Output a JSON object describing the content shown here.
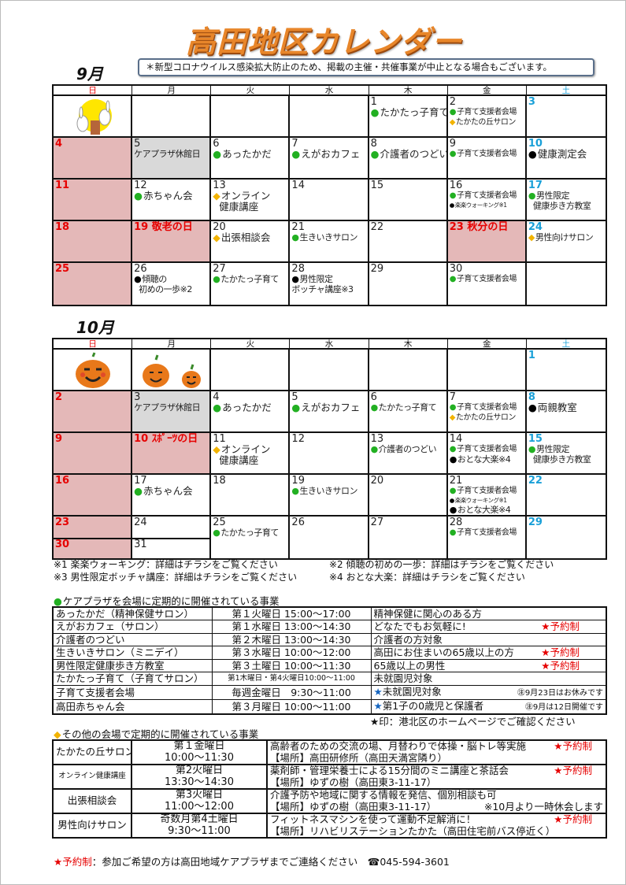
{
  "title": "高田地区カレンダー",
  "notice": "＊新型コロナウイルス感染拡大防止のため、掲載の主催・共催事業が中止となる場合もございます。",
  "weekdays": [
    "日",
    "月",
    "火",
    "水",
    "木",
    "金",
    "土"
  ],
  "colors": {
    "green": "#22b022",
    "orange": "#f2b300",
    "sunday": "#e60000",
    "saturday": "#1aa0d8",
    "holiday_bg": "#e4b8b8",
    "closed_bg": "#d9d9d9"
  },
  "september": {
    "label": "9月",
    "weeks": [
      [
        {
          "img": "moon-rabbits"
        },
        {},
        {},
        {},
        {
          "d": "1",
          "ev": [
            {
              "m": "g",
              "t": "たかたっ子育て"
            }
          ]
        },
        {
          "d": "2",
          "ev": [
            {
              "m": "g",
              "t": "子育て支援者会場",
              "z": "s"
            },
            {
              "m": "o",
              "t": "たかたの丘サロン",
              "z": "s"
            }
          ]
        },
        {
          "d": "3",
          "k": "sat"
        }
      ],
      [
        {
          "d": "4",
          "k": "sun",
          "bg": "pink"
        },
        {
          "d": "5",
          "bg": "gray",
          "ev": [
            {
              "t": "ケアプラザ休館日",
              "z": "note"
            }
          ]
        },
        {
          "d": "6",
          "ev": [
            {
              "m": "g",
              "t": "あったかだ"
            }
          ]
        },
        {
          "d": "7",
          "ev": [
            {
              "m": "g",
              "t": "えがおカフェ"
            }
          ]
        },
        {
          "d": "8",
          "ev": [
            {
              "m": "g",
              "t": "介護者のつどい"
            }
          ]
        },
        {
          "d": "9",
          "ev": [
            {
              "m": "g",
              "t": "子育て支援者会場",
              "z": "s"
            }
          ]
        },
        {
          "d": "10",
          "k": "sat",
          "ev": [
            {
              "m": "k",
              "t": "健康測定会"
            }
          ]
        }
      ],
      [
        {
          "d": "11",
          "k": "sun",
          "bg": "pink"
        },
        {
          "d": "12",
          "ev": [
            {
              "m": "g",
              "t": "赤ちゃん会"
            }
          ]
        },
        {
          "d": "13",
          "ev": [
            {
              "m": "o",
              "t": "オンライン\n  健康講座"
            }
          ]
        },
        {
          "d": "14"
        },
        {
          "d": "15"
        },
        {
          "d": "16",
          "ev": [
            {
              "m": "g",
              "t": "子育て支援者会場",
              "z": "s"
            },
            {
              "m": "k",
              "t": "楽楽ウォーキング※1",
              "z": "xs"
            }
          ]
        },
        {
          "d": "17",
          "k": "sat",
          "ev": [
            {
              "m": "g",
              "t": "男性限定\n  健康歩き方教室",
              "z": "note"
            }
          ]
        }
      ],
      [
        {
          "d": "18",
          "k": "sun",
          "bg": "pink"
        },
        {
          "d": "19 敬老の日",
          "k": "hol",
          "bg": "pink"
        },
        {
          "d": "20",
          "ev": [
            {
              "m": "o",
              "t": "出張相談会"
            }
          ]
        },
        {
          "d": "21",
          "ev": [
            {
              "m": "g",
              "t": "生きいきサロン",
              "z": "note"
            }
          ]
        },
        {
          "d": "22"
        },
        {
          "d": "23 秋分の日",
          "k": "hol",
          "bg": "pink"
        },
        {
          "d": "24",
          "k": "sat",
          "ev": [
            {
              "m": "o",
              "t": "男性向けサロン",
              "z": "note"
            }
          ]
        }
      ],
      [
        {
          "d": "25",
          "k": "sun",
          "bg": "pink"
        },
        {
          "d": "26",
          "ev": [
            {
              "m": "k",
              "t": "傾聴の\n  初めの一歩※2",
              "z": "note"
            }
          ]
        },
        {
          "d": "27",
          "ev": [
            {
              "m": "g",
              "t": "たかたっ子育て",
              "z": "note"
            }
          ]
        },
        {
          "d": "28",
          "ev": [
            {
              "m": "k",
              "t": "男性限定\nボッチャ講座※3",
              "z": "note"
            }
          ]
        },
        {
          "d": "29"
        },
        {
          "d": "30",
          "ev": [
            {
              "m": "g",
              "t": "子育て支援者会場",
              "z": "s"
            }
          ]
        },
        {}
      ]
    ]
  },
  "october": {
    "label": "10月",
    "weeks": [
      [
        {
          "img": "pumpkin-large"
        },
        {
          "img": "pumpkins-small"
        },
        {},
        {},
        {},
        {},
        {
          "d": "1",
          "k": "sat"
        }
      ],
      [
        {
          "d": "2",
          "k": "sun",
          "bg": "pink"
        },
        {
          "d": "3",
          "bg": "gray",
          "ev": [
            {
              "t": "ケアプラザ休館日",
              "z": "note"
            }
          ]
        },
        {
          "d": "4",
          "ev": [
            {
              "m": "g",
              "t": "あったかだ"
            }
          ]
        },
        {
          "d": "5",
          "ev": [
            {
              "m": "g",
              "t": "えがおカフェ"
            }
          ]
        },
        {
          "d": "6",
          "ev": [
            {
              "m": "g",
              "t": "たかたっ子育て",
              "z": "note"
            }
          ]
        },
        {
          "d": "7",
          "ev": [
            {
              "m": "g",
              "t": "子育て支援者会場",
              "z": "s"
            },
            {
              "m": "o",
              "t": "たかたの丘サロン",
              "z": "s"
            }
          ]
        },
        {
          "d": "8",
          "k": "sat",
          "ev": [
            {
              "m": "k",
              "t": "両親教室"
            }
          ]
        }
      ],
      [
        {
          "d": "9",
          "k": "sun",
          "bg": "pink"
        },
        {
          "d": "10 ｽﾎﾟｰﾂの日",
          "k": "hol",
          "bg": "pink"
        },
        {
          "d": "11",
          "ev": [
            {
              "m": "o",
              "t": "オンライン\n  健康講座"
            }
          ]
        },
        {
          "d": "12"
        },
        {
          "d": "13",
          "ev": [
            {
              "m": "g",
              "t": "介護者のつどい",
              "z": "note"
            }
          ]
        },
        {
          "d": "14",
          "ev": [
            {
              "m": "g",
              "t": "子育て支援者会場",
              "z": "s"
            },
            {
              "m": "k",
              "t": "おとな大楽※4",
              "z": "note"
            }
          ]
        },
        {
          "d": "15",
          "k": "sat",
          "ev": [
            {
              "m": "g",
              "t": "男性限定\n  健康歩き方教室",
              "z": "note"
            }
          ]
        }
      ],
      [
        {
          "d": "16",
          "k": "sun",
          "bg": "pink"
        },
        {
          "d": "17",
          "ev": [
            {
              "m": "g",
              "t": "赤ちゃん会"
            }
          ]
        },
        {
          "d": "18"
        },
        {
          "d": "19",
          "ev": [
            {
              "m": "g",
              "t": "生きいきサロン",
              "z": "note"
            }
          ]
        },
        {
          "d": "20"
        },
        {
          "d": "21",
          "ev": [
            {
              "m": "g",
              "t": "子育て支援者会場",
              "z": "s"
            },
            {
              "m": "k",
              "t": "楽楽ウォーキング※1",
              "z": "xs"
            },
            {
              "m": "k",
              "t": "おとな大楽※4",
              "z": "note"
            }
          ]
        },
        {
          "d": "22",
          "k": "sat"
        }
      ],
      [
        {
          "d": "23",
          "d2": "30",
          "k": "sun",
          "bg": "pink"
        },
        {
          "d": "24",
          "d2": "31"
        },
        {
          "d": "25",
          "ev": [
            {
              "m": "g",
              "t": "たかたっ子育て",
              "z": "note"
            }
          ]
        },
        {
          "d": "26"
        },
        {
          "d": "27"
        },
        {
          "d": "28",
          "ev": [
            {
              "m": "g",
              "t": "子育て支援者会場",
              "z": "s"
            }
          ]
        },
        {
          "d": "29",
          "k": "sat"
        }
      ]
    ]
  },
  "footnotes": [
    "※1 楽楽ウォーキング：詳細はチラシをご覧ください",
    "※2 傾聴の初めの一歩：詳細はチラシをご覧ください",
    "※3 男性限定ボッチャ講座：詳細はチラシをご覧ください",
    "※4 おとな大楽：詳細はチラシをご覧ください"
  ],
  "careplaza": {
    "heading": "ケアプラザを会場に定期的に開催されている事業",
    "reserve_label": "★予約制",
    "rows": [
      {
        "name": "あったかだ（精神保健サロン）",
        "schedule": "第１火曜日 15:00～17:00",
        "target": "精神保健に関心のある方"
      },
      {
        "name": "えがおカフェ（サロン）",
        "schedule": "第１水曜日 13:00～14:30",
        "target": "どなたでもお気軽に!",
        "reserve": true
      },
      {
        "name": "介護者のつどい",
        "schedule": "第２木曜日 13:00～14:30",
        "target": "介護者の方対象"
      },
      {
        "name": "生きいきサロン（ミニデイ）",
        "schedule": "第３水曜日 10:00～12:00",
        "target": "高田にお住まいの65歳以上の方",
        "reserve": true
      },
      {
        "name": "男性限定健康歩き方教室",
        "schedule": "第３土曜日 10:00～11:30",
        "target": "65歳以上の男性",
        "reserve": true
      },
      {
        "name": "たかたっ子育て（子育てサロン）",
        "schedule": "第1木曜日・第4火曜日10:00～11:00",
        "target": "未就園児対象",
        "small": true
      },
      {
        "name": "子育て支援者会場",
        "schedule": "毎週金曜日　9:30～11:00",
        "target": "未就園児対象",
        "star": true,
        "note": "㊟9月23日はお休みです"
      },
      {
        "name": "高田赤ちゃん会",
        "schedule": "第３月曜日 10:00～11:00",
        "target": "第1子の0歳児と保護者",
        "star": true,
        "note": "㊟9月は12日開催です"
      }
    ],
    "star_note": "★印：港北区のホームページでご確認ください"
  },
  "other": {
    "heading": "その他の会場で定期的に開催されている事業",
    "rows": [
      {
        "name": "たかたの丘サロン",
        "day": "第１金曜日",
        "time": "10:00～11:30",
        "desc": "高齢者のための交流の場、月替わりで体操・脳トレ等実施",
        "place": "【場所】高田研修所（高田天満宮隣り）",
        "reserve": true
      },
      {
        "name": "オンライン健康講座",
        "day": "第2火曜日",
        "time": "13:30～14:30",
        "desc": "薬剤師・管理栄養士による15分間のミニ講座と茶話会",
        "place": "【場所】ゆずの樹（高田東3-11-17）",
        "reserve": true,
        "small": true
      },
      {
        "name": "出張相談会",
        "day": "第3火曜日",
        "time": "11:00～12:00",
        "desc": "介護予防や地域に関する情報を発信、個別相談も可",
        "place": "【場所】ゆずの樹（高田東3-11-17）",
        "note": "※10月より一時休会します"
      },
      {
        "name": "男性向けサロン",
        "day": "奇数月第4土曜日",
        "time": "9:30～11:00",
        "desc": "フィットネスマシンを使って運動不足解消に！",
        "place": "【場所】リハビリステーションたかた（高田住宅前バス停近く）",
        "reserve": true
      }
    ]
  },
  "footer": {
    "reserve_label": "★予約制",
    "text": "：参加ご希望の方は高田地域ケアプラザまでご連絡ください",
    "phone": "045-594-3601"
  }
}
